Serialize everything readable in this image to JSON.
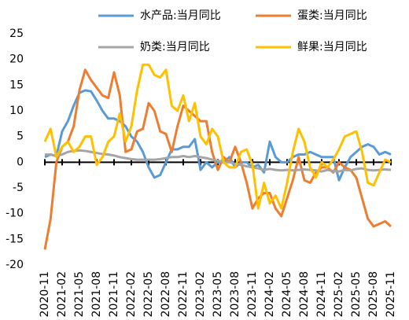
{
  "chart_data": {
    "type": "line",
    "categories": [
      "2020-11",
      null,
      null,
      "2021-02",
      null,
      null,
      "2021-05",
      null,
      null,
      "2021-08",
      null,
      null,
      "2021-11",
      null,
      null,
      "2022-02",
      null,
      null,
      "2022-05",
      null,
      null,
      "2022-08",
      null,
      null,
      "2022-11",
      null,
      null,
      "2023-02",
      null,
      null,
      "2023-05",
      null,
      null,
      "2023-08",
      null,
      null,
      "2023-11",
      null,
      null,
      "2024-02",
      null,
      null,
      "2024-05",
      null,
      null,
      "2024-08",
      null,
      null,
      "2024-11",
      null,
      null,
      "2025-02",
      null,
      null,
      "2025-05",
      null,
      null,
      "2025-08",
      null,
      null,
      "2025-11"
    ],
    "series": [
      {
        "name": "水产品:当月同比",
        "color": "#5b9bd5",
        "values": [
          1,
          1.5,
          1.2,
          6,
          8,
          11,
          13.5,
          14,
          13.8,
          12,
          10,
          8.5,
          8.5,
          8,
          7,
          5,
          4,
          2,
          -1,
          -3,
          -2.5,
          0,
          2.5,
          2.5,
          3,
          3,
          4.5,
          -1.5,
          0,
          -1,
          0,
          0,
          1,
          -1,
          0,
          0,
          -1,
          -0.5,
          -2,
          4,
          1,
          0,
          0,
          1,
          1.5,
          1.5,
          2,
          1.5,
          1,
          1,
          1,
          -3.5,
          -1,
          1,
          2,
          3,
          3.5,
          3,
          1.5,
          2,
          1.5
        ]
      },
      {
        "name": "蛋类:当月同比",
        "color": "#ed7d31",
        "values": [
          -17,
          -11,
          0,
          3,
          4,
          7,
          14,
          18,
          16,
          14.5,
          13,
          12.5,
          17.5,
          13,
          2,
          2.5,
          6,
          6.5,
          11.5,
          10,
          6,
          5.5,
          2,
          7,
          11,
          10,
          9,
          8,
          8,
          2,
          -1.5,
          1,
          0,
          3,
          0,
          -4,
          -9,
          -7,
          -6,
          -6,
          -9,
          -10.5,
          -7,
          -3.5,
          1,
          -3.5,
          -4,
          -2,
          -1,
          -1,
          -2,
          0,
          -1,
          -1.5,
          -3,
          -7,
          -11,
          -12.5,
          -12,
          -11.5,
          -12.5
        ]
      },
      {
        "name": "奶类:当月同比",
        "color": "#a5a5a5",
        "values": [
          1.5,
          1.5,
          1.2,
          1.5,
          2,
          2.2,
          2.3,
          2.2,
          2,
          1.8,
          1.6,
          1.5,
          1.3,
          1,
          0.8,
          0.6,
          0.5,
          0.5,
          0.5,
          0.5,
          0.6,
          0.8,
          1,
          1,
          1.2,
          1,
          1.2,
          1,
          0.8,
          0.5,
          0.3,
          0,
          0,
          -0.3,
          -0.5,
          -0.8,
          -1,
          -1.2,
          -1.5,
          -1.3,
          -1.5,
          -1.6,
          -1.5,
          -1.6,
          -1.5,
          -1.4,
          -1.5,
          -1.6,
          -1.8,
          -1.5,
          -1.7,
          -1.8,
          -1.5,
          -1.6,
          -1.3,
          -1.2,
          -1.5,
          -1.6,
          -1.5,
          -1.4,
          -1.5
        ]
      },
      {
        "name": "鲜果:当月同比",
        "color": "#ffc000",
        "values": [
          4,
          6.5,
          1,
          3,
          4,
          2,
          3,
          5,
          5,
          -0.5,
          1,
          4,
          5,
          9.5,
          4,
          7,
          14,
          19,
          19,
          17,
          16.5,
          18,
          11,
          10,
          13,
          8,
          11.5,
          5,
          3.5,
          6.5,
          5,
          0,
          -1,
          -1,
          2,
          2.5,
          -0.5,
          -9,
          -4,
          -8,
          -6.5,
          -9,
          -4,
          2,
          6.5,
          4,
          -1,
          -3,
          0,
          -1,
          0.5,
          2.5,
          5,
          5.5,
          6,
          2,
          -4,
          -4.5,
          -2,
          0.5,
          0
        ]
      }
    ],
    "ylim": [
      -20,
      25
    ],
    "yticks": [
      -20,
      -15,
      -10,
      -5,
      0,
      5,
      10,
      15,
      20,
      25
    ]
  }
}
